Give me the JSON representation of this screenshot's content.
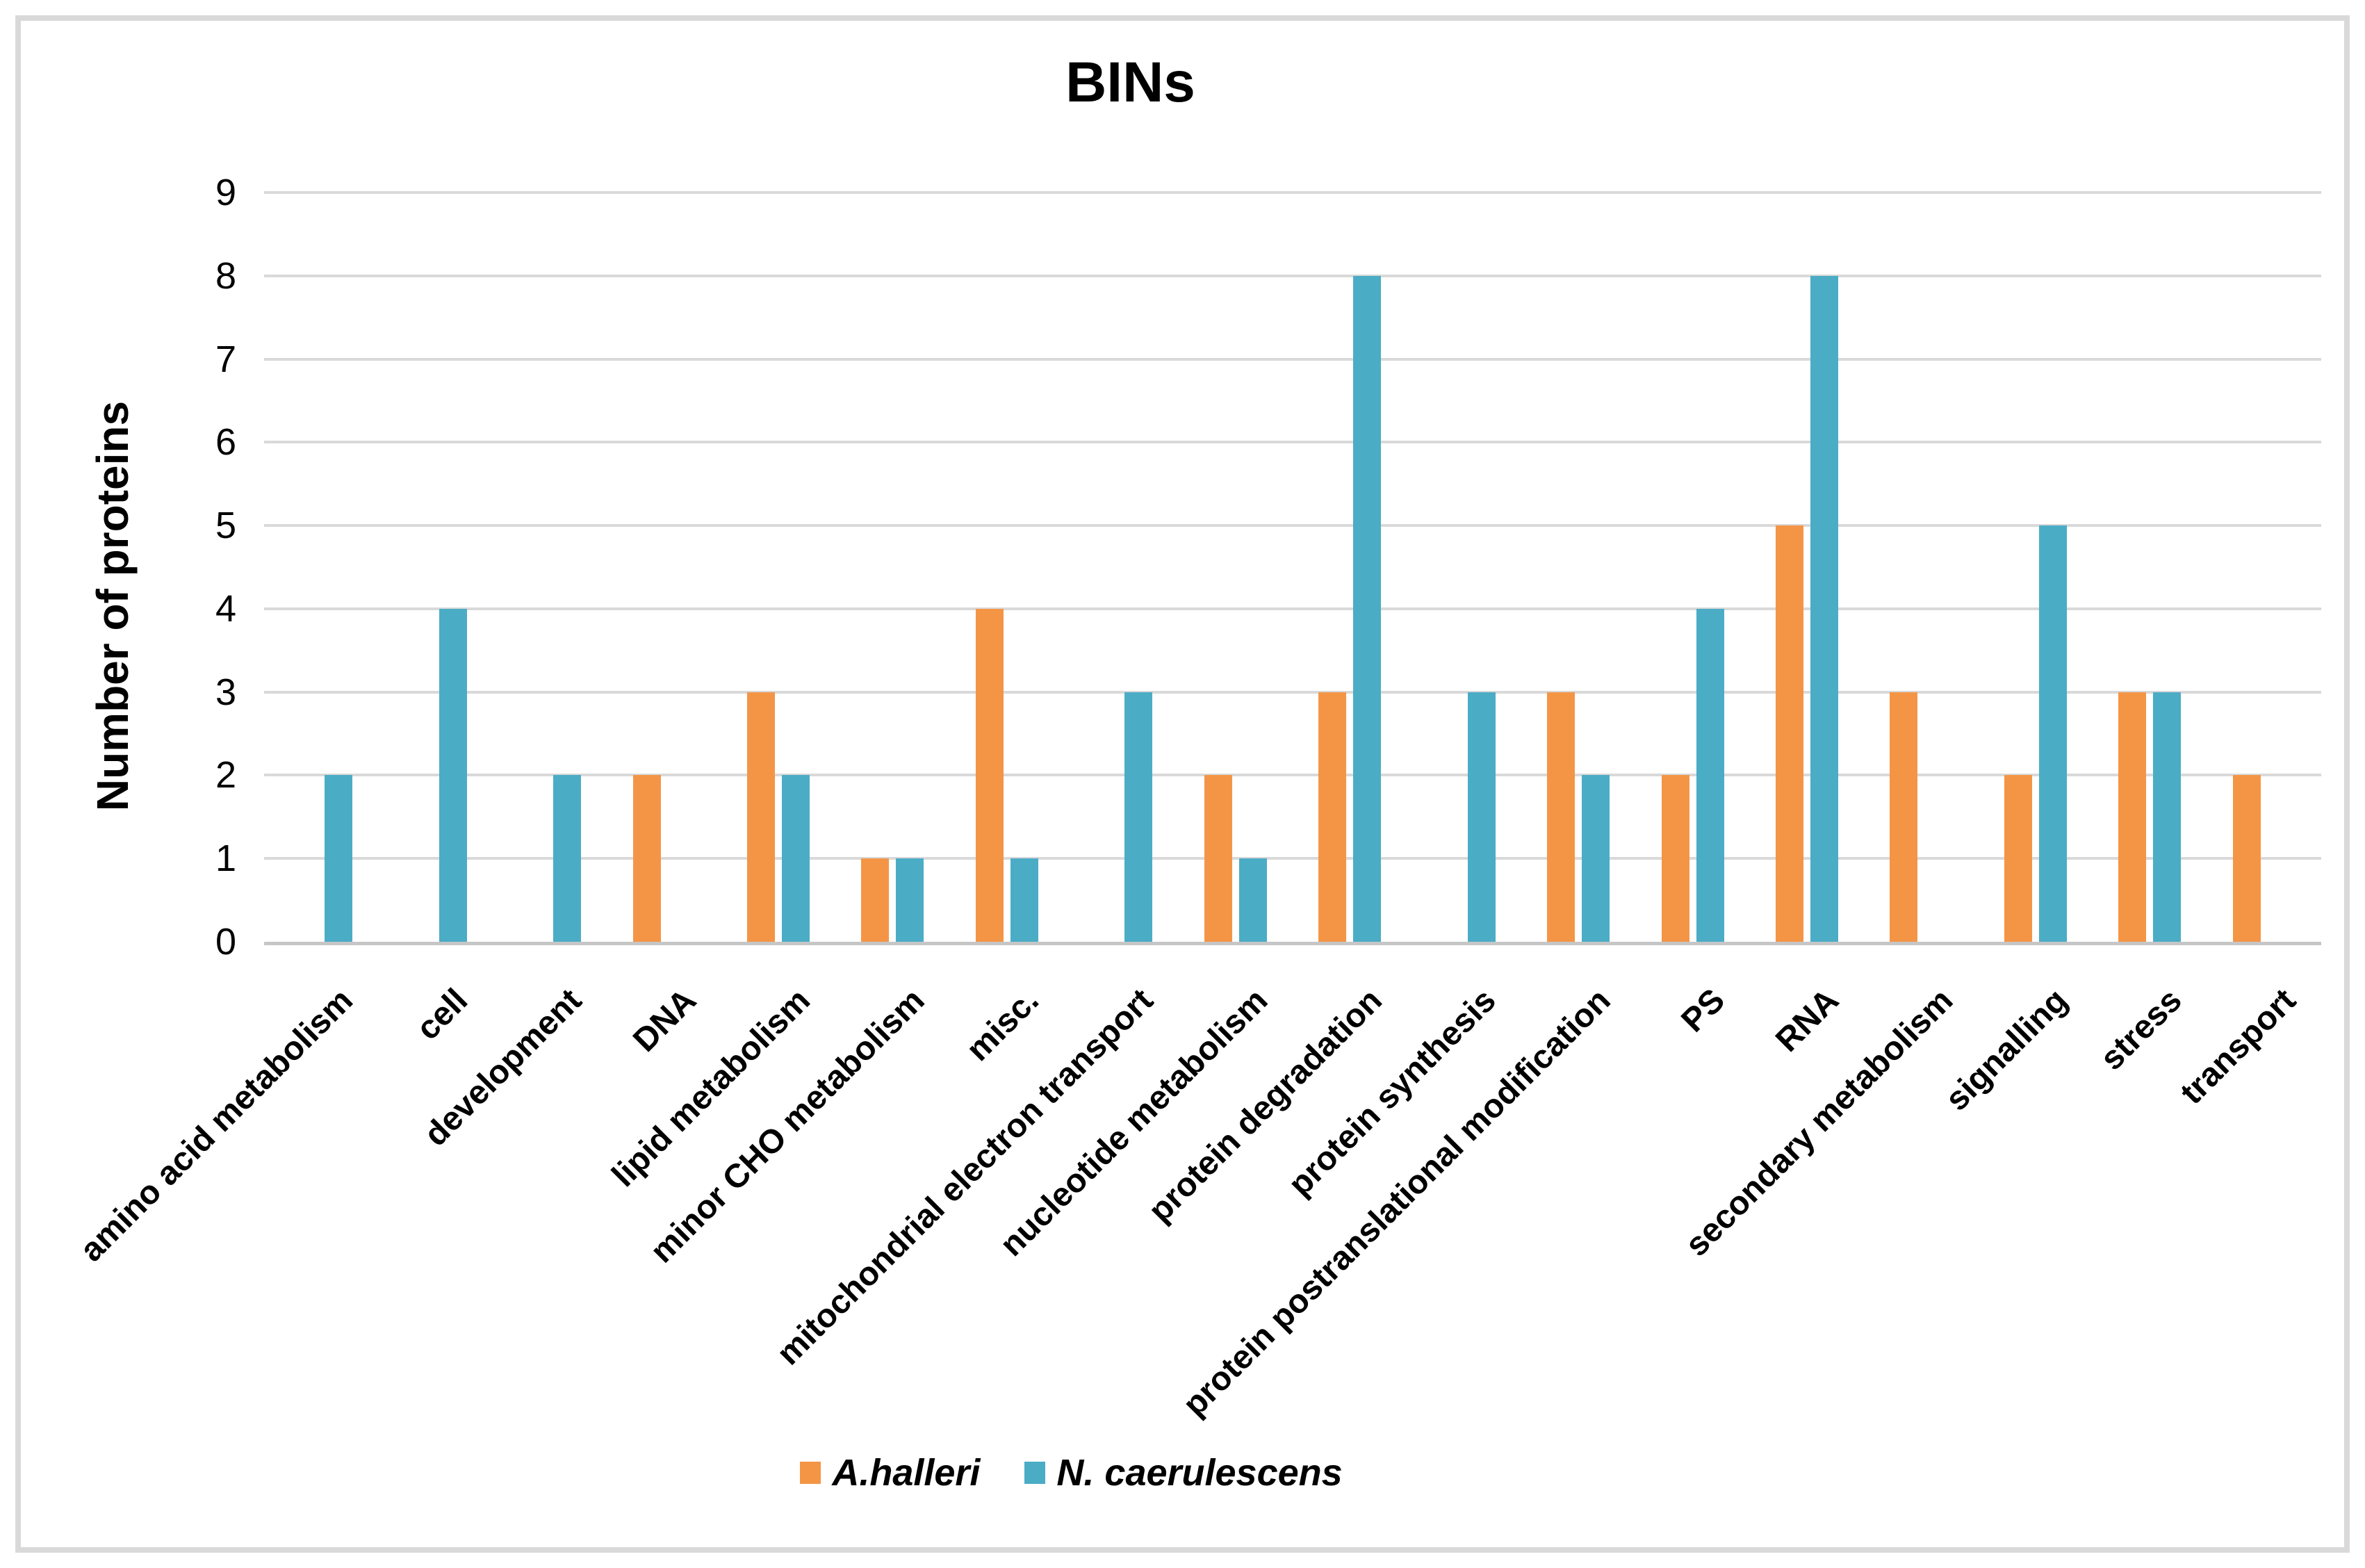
{
  "chart_data": {
    "type": "bar",
    "title": "BINs",
    "ylabel": "Number of proteins",
    "xlabel": "",
    "ylim": [
      0,
      9
    ],
    "ytick_step": 1,
    "yticks": [
      "0",
      "1",
      "2",
      "3",
      "4",
      "5",
      "6",
      "7",
      "8",
      "9"
    ],
    "grid": true,
    "legend_position": "bottom-center",
    "categories": [
      "amino acid metabolism",
      "cell",
      "development",
      "DNA",
      "lipid metabolism",
      "minor CHO metabolism",
      "misc.",
      "mitochondrial electron transport",
      "nucleotide metabolism",
      "protein degradation",
      "protein synthesis",
      "protein postranslational modification",
      "PS",
      "RNA",
      "secondary metabolism",
      "signalling",
      "stress",
      "transport"
    ],
    "series": [
      {
        "name": "A.halleri",
        "color": "#F49546",
        "values": [
          0,
          0,
          0,
          2,
          3,
          1,
          4,
          0,
          2,
          3,
          0,
          3,
          2,
          5,
          3,
          2,
          3,
          2
        ]
      },
      {
        "name": "N. caerulescens",
        "color": "#4BACC6",
        "values": [
          2,
          4,
          2,
          0,
          2,
          1,
          1,
          3,
          1,
          8,
          3,
          2,
          4,
          8,
          0,
          5,
          3,
          0
        ]
      }
    ]
  },
  "style": {
    "grid_color": "#D9D9D9",
    "axis_line_color": "#C6C6C6",
    "frame_border_color": "#D9D9D9",
    "text_color": "#000000",
    "background": "#FFFFFF"
  }
}
